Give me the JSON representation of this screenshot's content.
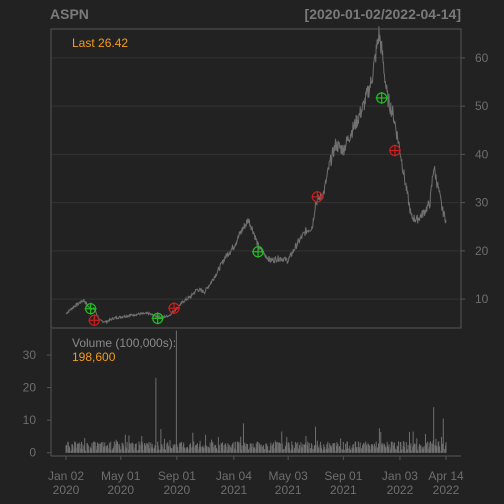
{
  "header": {
    "symbol": "ASPN",
    "range": "[2020-01-02/2022-04-14]"
  },
  "colors": {
    "background": "#222222",
    "panel_border": "#555555",
    "grid": "#333333",
    "price_line": "#707070",
    "volume_bar": "#6f6f6f",
    "accent": "#f59c1a",
    "buy_marker": "#1fbf1f",
    "sell_marker": "#c81e1e"
  },
  "chart_data": [
    {
      "type": "line",
      "panel": "price",
      "annotation": "Last 26.42",
      "y_ticks": [
        10,
        20,
        30,
        40,
        50,
        60
      ],
      "ylim": [
        4,
        66
      ],
      "series": [
        {
          "points": [
            [
              "2020-01-02",
              7.0
            ],
            [
              "2020-01-20",
              8.5
            ],
            [
              "2020-02-10",
              9.8
            ],
            [
              "2020-02-21",
              8.3
            ],
            [
              "2020-03-05",
              7.8
            ],
            [
              "2020-03-16",
              5.5
            ],
            [
              "2020-03-30",
              5.3
            ],
            [
              "2020-04-15",
              6.0
            ],
            [
              "2020-05-01",
              6.3
            ],
            [
              "2020-05-20",
              6.6
            ],
            [
              "2020-06-10",
              6.9
            ],
            [
              "2020-07-01",
              7.0
            ],
            [
              "2020-07-15",
              6.5
            ],
            [
              "2020-08-01",
              6.2
            ],
            [
              "2020-08-15",
              6.6
            ],
            [
              "2020-08-31",
              8.0
            ],
            [
              "2020-09-15",
              9.5
            ],
            [
              "2020-10-01",
              10.5
            ],
            [
              "2020-10-15",
              12.0
            ],
            [
              "2020-11-01",
              11.5
            ],
            [
              "2020-11-15",
              13.5
            ],
            [
              "2020-12-01",
              16.0
            ],
            [
              "2020-12-15",
              18.5
            ],
            [
              "2021-01-04",
              21.0
            ],
            [
              "2021-01-20",
              24.0
            ],
            [
              "2021-02-05",
              26.5
            ],
            [
              "2021-02-16",
              24.0
            ],
            [
              "2021-02-26",
              21.0
            ],
            [
              "2021-03-10",
              19.5
            ],
            [
              "2021-03-25",
              18.0
            ],
            [
              "2021-04-15",
              18.5
            ],
            [
              "2021-05-03",
              18.0
            ],
            [
              "2021-05-20",
              21.0
            ],
            [
              "2021-06-10",
              24.0
            ],
            [
              "2021-06-25",
              25.0
            ],
            [
              "2021-07-02",
              30.0
            ],
            [
              "2021-07-20",
              32.0
            ],
            [
              "2021-08-02",
              38.0
            ],
            [
              "2021-08-15",
              42.0
            ],
            [
              "2021-09-01",
              41.0
            ],
            [
              "2021-09-15",
              44.0
            ],
            [
              "2021-10-01",
              47.0
            ],
            [
              "2021-10-15",
              50.0
            ],
            [
              "2021-11-01",
              55.0
            ],
            [
              "2021-11-10",
              60.0
            ],
            [
              "2021-11-18",
              65.0
            ],
            [
              "2021-11-25",
              61.0
            ],
            [
              "2021-12-06",
              52.0
            ],
            [
              "2021-12-20",
              48.0
            ],
            [
              "2022-01-03",
              41.0
            ],
            [
              "2022-01-15",
              34.0
            ],
            [
              "2022-01-28",
              27.0
            ],
            [
              "2022-02-10",
              26.5
            ],
            [
              "2022-02-25",
              28.0
            ],
            [
              "2022-03-10",
              30.0
            ],
            [
              "2022-03-18",
              37.5
            ],
            [
              "2022-03-28",
              33.0
            ],
            [
              "2022-04-06",
              28.5
            ],
            [
              "2022-04-14",
              26.42
            ]
          ]
        }
      ],
      "buy_signals": [
        [
          "2020-02-25",
          8.0
        ],
        [
          "2020-07-21",
          6.0
        ],
        [
          "2021-02-26",
          19.8
        ],
        [
          "2021-11-24",
          51.7
        ]
      ],
      "sell_signals": [
        [
          "2020-03-04",
          5.6
        ],
        [
          "2020-08-26",
          8.1
        ],
        [
          "2021-07-06",
          31.2
        ],
        [
          "2021-12-23",
          40.8
        ]
      ]
    },
    {
      "type": "bar",
      "panel": "volume",
      "label": "Volume (100,000s):",
      "last_value": "198,600",
      "y_ticks": [
        0,
        10,
        20,
        30
      ],
      "ylim": [
        -1,
        38
      ],
      "x_ticks": [
        "2020-01-02",
        "2020-05-01",
        "2020-09-01",
        "2021-01-04",
        "2021-05-03",
        "2021-09-01",
        "2022-01-03",
        "2022-04-14"
      ],
      "x_tick_labels": [
        [
          "Jan 02",
          "2020"
        ],
        [
          "May 01",
          "2020"
        ],
        [
          "Sep 01",
          "2020"
        ],
        [
          "Jan 04",
          "2021"
        ],
        [
          "May 03",
          "2021"
        ],
        [
          "Sep 01",
          "2021"
        ],
        [
          "Jan 03",
          "2022"
        ],
        [
          "Apr 14",
          "2022"
        ]
      ],
      "spikes": [
        [
          "2020-02-12",
          4.5
        ],
        [
          "2020-07-17",
          23.0
        ],
        [
          "2020-08-31",
          37.5
        ],
        [
          "2021-01-25",
          9.0
        ],
        [
          "2021-07-02",
          8.0
        ],
        [
          "2021-11-19",
          7.5
        ],
        [
          "2022-02-01",
          6.5
        ],
        [
          "2022-03-18",
          14.0
        ],
        [
          "2022-04-08",
          10.5
        ]
      ],
      "baseline_range": [
        0.5,
        3.5
      ]
    }
  ]
}
